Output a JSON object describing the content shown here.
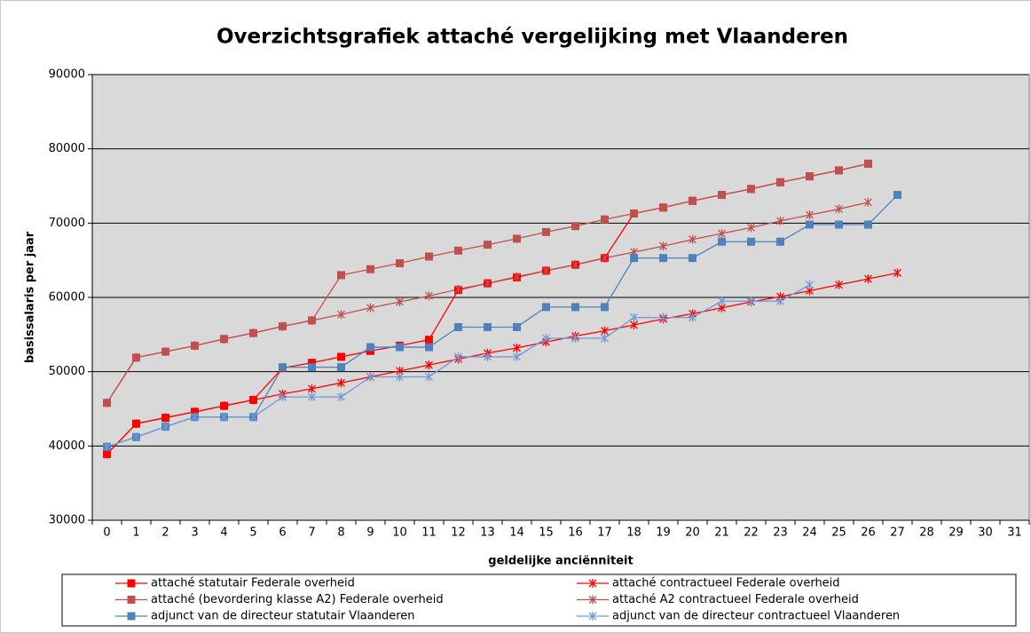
{
  "chart_data": {
    "type": "line",
    "title": "Overzichtsgrafiek attaché vergelijking met Vlaanderen",
    "x_label": "geldelijke anciënniteit",
    "y_label": "basissalaris per jaar",
    "categories": [
      0,
      1,
      2,
      3,
      4,
      5,
      6,
      7,
      8,
      9,
      10,
      11,
      12,
      13,
      14,
      15,
      16,
      17,
      18,
      19,
      20,
      21,
      22,
      23,
      24,
      25,
      26,
      27,
      28,
      29,
      30,
      31
    ],
    "ylim": [
      30000,
      90000
    ],
    "yticks": [
      30000,
      40000,
      50000,
      60000,
      70000,
      80000,
      90000
    ],
    "grid": true,
    "legend": "bottom",
    "series": [
      {
        "name": "attaché statutair Federale overheid",
        "color": "#ff0000",
        "marker": "square",
        "values": [
          38900,
          43000,
          43800,
          44600,
          45400,
          46200,
          50500,
          51200,
          52000,
          52800,
          53500,
          54300,
          61000,
          61900,
          62700,
          63600,
          64400,
          65300,
          71300,
          72100,
          73000,
          73800,
          74600,
          75500,
          76300,
          77100,
          78000,
          null,
          null,
          null,
          null,
          null
        ]
      },
      {
        "name": "attaché contractueel Federale overheid",
        "color": "#ff0000",
        "marker": "star",
        "values": [
          38900,
          43000,
          43800,
          44600,
          45400,
          46200,
          47000,
          47700,
          48500,
          49300,
          50100,
          50900,
          51700,
          52500,
          53200,
          54000,
          54800,
          55500,
          56300,
          57100,
          57800,
          58600,
          59400,
          60100,
          60900,
          61700,
          62500,
          63300,
          null,
          null,
          null,
          null
        ]
      },
      {
        "name": "attaché (bevordering klasse A2) Federale overheid",
        "color": "#c0504d",
        "marker": "square",
        "values": [
          45800,
          51900,
          52700,
          53500,
          54400,
          55200,
          56100,
          56900,
          63000,
          63800,
          64600,
          65500,
          66300,
          67100,
          67900,
          68800,
          69600,
          70500,
          71300,
          72100,
          73000,
          73800,
          74600,
          75500,
          76300,
          77100,
          78000,
          null,
          null,
          null,
          null,
          null
        ]
      },
      {
        "name": "attaché A2 contractueel Federale overheid",
        "color": "#c0504d",
        "marker": "star",
        "values": [
          45800,
          51900,
          52700,
          53500,
          54400,
          55200,
          56100,
          56900,
          57700,
          58600,
          59400,
          60200,
          61100,
          61900,
          62800,
          63600,
          64400,
          65300,
          66100,
          66900,
          67800,
          68600,
          69400,
          70300,
          71100,
          71900,
          72800,
          null,
          null,
          null,
          null,
          null
        ]
      },
      {
        "name": "adjunct van de directeur statutair Vlaanderen",
        "color": "#4f81bd",
        "marker": "square",
        "values": [
          39900,
          41200,
          42600,
          43900,
          43900,
          43900,
          50600,
          50600,
          50600,
          53300,
          53300,
          53300,
          56000,
          56000,
          56000,
          58700,
          58700,
          58700,
          65300,
          65300,
          65300,
          67500,
          67500,
          67500,
          69800,
          69800,
          69800,
          73800,
          null,
          null,
          null,
          null
        ]
      },
      {
        "name": "adjunct van de directeur contractueel Vlaanderen",
        "color": "#6f9ad6",
        "marker": "star",
        "values": [
          39900,
          41200,
          42600,
          43900,
          43900,
          43900,
          46600,
          46600,
          46600,
          49300,
          49300,
          49300,
          52000,
          52000,
          52000,
          54500,
          54500,
          54500,
          57300,
          57300,
          57300,
          59500,
          59500,
          59500,
          61700,
          null,
          null,
          null,
          null,
          null,
          null,
          null
        ]
      }
    ]
  }
}
